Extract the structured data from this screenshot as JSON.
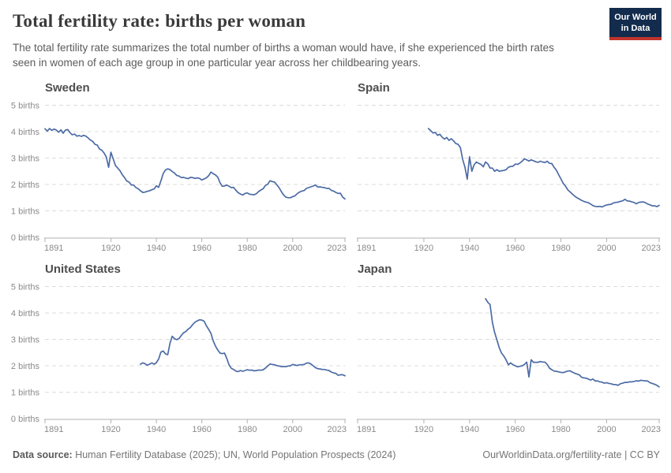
{
  "header": {
    "title": "Total fertility rate: births per woman",
    "subtitle": "The total fertility rate summarizes the total number of births a woman would have, if she experienced the birth rates seen in women of each age group in one particular year across her childbearing years.",
    "logo_line1": "Our World",
    "logo_line2": "in Data"
  },
  "colors": {
    "line": "#4c6ba5",
    "logo_navy": "#132c4d",
    "logo_red": "#c0332b",
    "grid": "#dcdcdc",
    "axis": "#b0b0b0"
  },
  "chart_data": [
    {
      "type": "line",
      "title": "Sweden",
      "ylabel": "births",
      "xlim": [
        1891,
        2023
      ],
      "ylim": [
        0,
        5
      ],
      "x_ticks": [
        1891,
        1920,
        1940,
        1960,
        1980,
        2000,
        2023
      ],
      "y_tick_labels": [
        "0 births",
        "1 births",
        "2 births",
        "3 births",
        "4 births",
        "5 births"
      ],
      "grid": "horizontal-dashed",
      "legend": "none",
      "show_y_labels": true,
      "x_start": 1891,
      "x_step": 1,
      "values": [
        4.11,
        4.02,
        4.12,
        4.05,
        4.1,
        4.06,
        3.98,
        4.07,
        3.94,
        4.06,
        4.08,
        3.96,
        3.88,
        3.91,
        3.83,
        3.85,
        3.82,
        3.86,
        3.83,
        3.76,
        3.68,
        3.63,
        3.52,
        3.49,
        3.34,
        3.3,
        3.19,
        3.04,
        2.65,
        3.22,
        2.97,
        2.72,
        2.62,
        2.52,
        2.37,
        2.26,
        2.13,
        2.09,
        1.98,
        1.98,
        1.88,
        1.84,
        1.76,
        1.7,
        1.71,
        1.74,
        1.76,
        1.8,
        1.83,
        1.95,
        1.89,
        2.13,
        2.41,
        2.55,
        2.59,
        2.56,
        2.49,
        2.43,
        2.34,
        2.32,
        2.26,
        2.27,
        2.24,
        2.22,
        2.27,
        2.26,
        2.23,
        2.25,
        2.23,
        2.17,
        2.21,
        2.25,
        2.33,
        2.47,
        2.41,
        2.36,
        2.28,
        2.07,
        1.93,
        1.94,
        1.98,
        1.93,
        1.88,
        1.89,
        1.78,
        1.69,
        1.64,
        1.6,
        1.66,
        1.68,
        1.63,
        1.62,
        1.61,
        1.65,
        1.73,
        1.79,
        1.84,
        1.96,
        2.01,
        2.14,
        2.11,
        2.09,
        1.99,
        1.88,
        1.73,
        1.6,
        1.52,
        1.5,
        1.5,
        1.54,
        1.57,
        1.65,
        1.71,
        1.75,
        1.77,
        1.85,
        1.88,
        1.91,
        1.94,
        1.98,
        1.9,
        1.91,
        1.89,
        1.88,
        1.85,
        1.85,
        1.78,
        1.75,
        1.7,
        1.66,
        1.67,
        1.52,
        1.45
      ]
    },
    {
      "type": "line",
      "title": "Spain",
      "ylabel": "births",
      "xlim": [
        1891,
        2023
      ],
      "ylim": [
        0,
        5
      ],
      "x_ticks": [
        1891,
        1920,
        1940,
        1960,
        1980,
        2000,
        2023
      ],
      "y_tick_labels": [
        "0 births",
        "1 births",
        "2 births",
        "3 births",
        "4 births",
        "5 births"
      ],
      "grid": "horizontal-dashed",
      "legend": "none",
      "show_y_labels": false,
      "x_start": 1922,
      "x_step": 1,
      "values": [
        4.12,
        4.04,
        3.95,
        3.97,
        3.86,
        3.9,
        3.79,
        3.72,
        3.78,
        3.67,
        3.73,
        3.65,
        3.55,
        3.52,
        3.4,
        2.95,
        2.65,
        2.2,
        3.05,
        2.5,
        2.75,
        2.85,
        2.8,
        2.76,
        2.67,
        2.85,
        2.78,
        2.62,
        2.62,
        2.5,
        2.56,
        2.5,
        2.52,
        2.53,
        2.56,
        2.65,
        2.68,
        2.69,
        2.77,
        2.76,
        2.81,
        2.88,
        2.97,
        2.93,
        2.89,
        2.93,
        2.9,
        2.86,
        2.84,
        2.88,
        2.85,
        2.83,
        2.88,
        2.8,
        2.79,
        2.65,
        2.54,
        2.37,
        2.21,
        2.04,
        1.94,
        1.8,
        1.72,
        1.64,
        1.56,
        1.5,
        1.45,
        1.4,
        1.36,
        1.33,
        1.31,
        1.26,
        1.2,
        1.17,
        1.16,
        1.17,
        1.15,
        1.19,
        1.22,
        1.24,
        1.25,
        1.3,
        1.32,
        1.33,
        1.36,
        1.38,
        1.44,
        1.38,
        1.37,
        1.34,
        1.32,
        1.27,
        1.32,
        1.33,
        1.34,
        1.31,
        1.26,
        1.23,
        1.19,
        1.19,
        1.16,
        1.21
      ]
    },
    {
      "type": "line",
      "title": "United States",
      "ylabel": "births",
      "xlim": [
        1891,
        2023
      ],
      "ylim": [
        0,
        5
      ],
      "x_ticks": [
        1891,
        1920,
        1940,
        1960,
        1980,
        2000,
        2023
      ],
      "y_tick_labels": [
        "0 births",
        "1 births",
        "2 births",
        "3 births",
        "4 births",
        "5 births"
      ],
      "grid": "horizontal-dashed",
      "legend": "none",
      "show_y_labels": true,
      "x_start": 1933,
      "x_step": 1,
      "values": [
        2.06,
        2.11,
        2.08,
        2.02,
        2.06,
        2.11,
        2.06,
        2.12,
        2.25,
        2.52,
        2.56,
        2.45,
        2.42,
        2.85,
        3.12,
        3.02,
        2.99,
        3.03,
        3.15,
        3.25,
        3.3,
        3.39,
        3.45,
        3.56,
        3.65,
        3.7,
        3.74,
        3.73,
        3.69,
        3.52,
        3.38,
        3.23,
        2.95,
        2.75,
        2.6,
        2.48,
        2.46,
        2.48,
        2.28,
        2.03,
        1.9,
        1.86,
        1.8,
        1.78,
        1.82,
        1.79,
        1.82,
        1.85,
        1.83,
        1.84,
        1.81,
        1.82,
        1.84,
        1.83,
        1.85,
        1.91,
        1.99,
        2.07,
        2.05,
        2.04,
        2.01,
        1.99,
        1.97,
        1.97,
        1.97,
        1.99,
        2.0,
        2.05,
        2.03,
        2.01,
        2.04,
        2.04,
        2.05,
        2.1,
        2.11,
        2.07,
        2.0,
        1.93,
        1.89,
        1.88,
        1.86,
        1.86,
        1.84,
        1.82,
        1.76,
        1.73,
        1.71,
        1.64,
        1.66,
        1.66,
        1.62
      ]
    },
    {
      "type": "line",
      "title": "Japan",
      "ylabel": "births",
      "xlim": [
        1891,
        2023
      ],
      "ylim": [
        0,
        5
      ],
      "x_ticks": [
        1891,
        1920,
        1940,
        1960,
        1980,
        2000,
        2023
      ],
      "y_tick_labels": [
        "0 births",
        "1 births",
        "2 births",
        "3 births",
        "4 births",
        "5 births"
      ],
      "grid": "horizontal-dashed",
      "legend": "none",
      "show_y_labels": false,
      "x_start": 1947,
      "x_step": 1,
      "values": [
        4.54,
        4.4,
        4.32,
        3.65,
        3.26,
        2.98,
        2.69,
        2.48,
        2.37,
        2.22,
        2.04,
        2.11,
        2.04,
        2.0,
        1.96,
        1.98,
        2.0,
        2.05,
        2.14,
        1.58,
        2.23,
        2.13,
        2.13,
        2.13,
        2.16,
        2.14,
        2.14,
        2.05,
        1.91,
        1.85,
        1.8,
        1.79,
        1.77,
        1.75,
        1.74,
        1.77,
        1.8,
        1.81,
        1.76,
        1.72,
        1.69,
        1.66,
        1.57,
        1.54,
        1.53,
        1.5,
        1.46,
        1.5,
        1.42,
        1.43,
        1.39,
        1.38,
        1.34,
        1.36,
        1.33,
        1.32,
        1.29,
        1.29,
        1.26,
        1.32,
        1.34,
        1.37,
        1.37,
        1.39,
        1.39,
        1.41,
        1.43,
        1.42,
        1.45,
        1.44,
        1.43,
        1.42,
        1.36,
        1.33,
        1.3,
        1.26,
        1.2
      ]
    }
  ],
  "footer": {
    "source_label": "Data source:",
    "source_text": " Human Fertility Database (2025); UN, World Population Prospects (2024)",
    "link": "OurWorldinData.org/fertility-rate",
    "license": " | CC BY"
  }
}
